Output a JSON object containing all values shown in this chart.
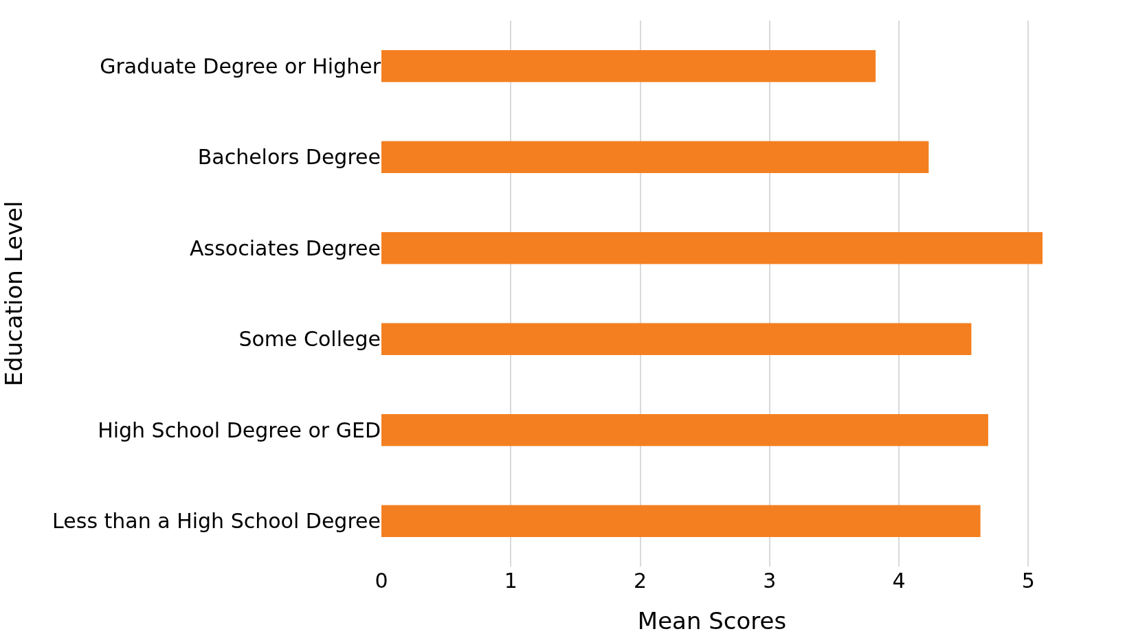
{
  "chart_data": {
    "type": "bar",
    "orientation": "horizontal",
    "categories": [
      "Graduate Degree or Higher",
      "Bachelors Degree",
      "Associates Degree",
      "Some College",
      "High School Degree or GED",
      "Less than a High School Degree"
    ],
    "values": [
      3.82,
      4.23,
      5.11,
      4.56,
      4.69,
      4.63
    ],
    "color": "#f47f20",
    "xlabel": "Mean Scores",
    "ylabel": "Education Level",
    "xlim": [
      0,
      5.11
    ],
    "xticks": [
      0,
      1,
      2,
      3,
      4,
      5
    ],
    "grid": "x"
  }
}
